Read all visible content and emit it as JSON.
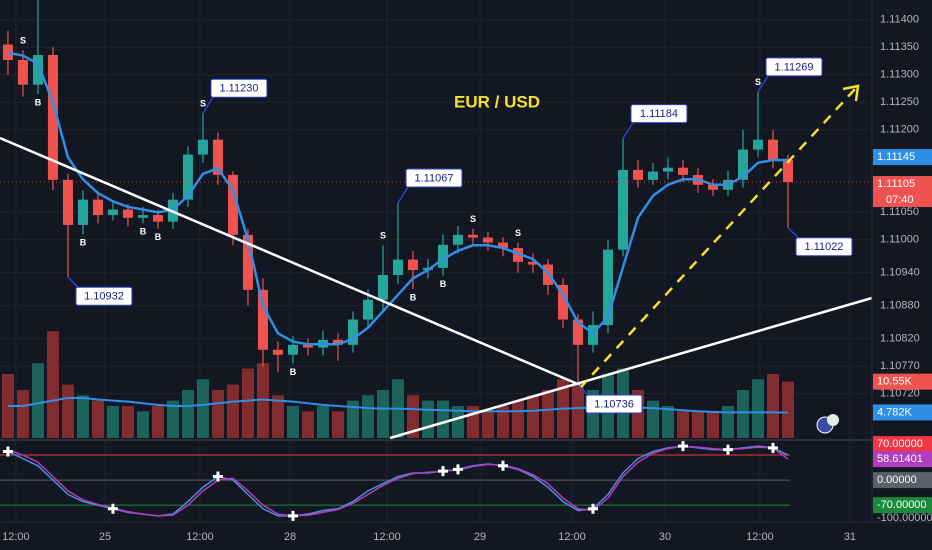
{
  "chart_data": {
    "type": "candlestick",
    "title": "EUR / USD",
    "xlim": [
      -0.53,
      57.6
    ],
    "xticks": [
      {
        "value": 0.53,
        "label": "12:00"
      },
      {
        "value": 6.47,
        "label": "25"
      },
      {
        "value": 12.8,
        "label": "12:00"
      },
      {
        "value": 18.8,
        "label": "28"
      },
      {
        "value": 25.27,
        "label": "12:00"
      },
      {
        "value": 31.47,
        "label": "29"
      },
      {
        "value": 37.6,
        "label": "12:00"
      },
      {
        "value": 43.8,
        "label": "30"
      },
      {
        "value": 50.13,
        "label": "12:00"
      },
      {
        "value": 56.13,
        "label": "31"
      }
    ],
    "ylim": [
      1.10636,
      1.11436
    ],
    "yticks": [
      {
        "value": 1.114,
        "label": "1.11400"
      },
      {
        "value": 1.1135,
        "label": "1.11350"
      },
      {
        "value": 1.113,
        "label": "1.11300"
      },
      {
        "value": 1.1125,
        "label": "1.11250"
      },
      {
        "value": 1.112,
        "label": "1.11200"
      },
      {
        "value": 1.1105,
        "label": "1.11050"
      },
      {
        "value": 1.11,
        "label": "1.11000"
      },
      {
        "value": 1.1094,
        "label": "1.10940"
      },
      {
        "value": 1.1088,
        "label": "1.10880"
      },
      {
        "value": 1.1082,
        "label": "1.10820"
      },
      {
        "value": 1.1077,
        "label": "1.10770"
      },
      {
        "value": 1.1072,
        "label": "1.10720"
      }
    ],
    "grid": true,
    "up_color": "#26a69a",
    "down_color": "#ef5350",
    "open": [
      1.11355,
      1.11327,
      1.11282,
      1.11336,
      1.11109,
      1.11027,
      1.11073,
      1.11045,
      1.11055,
      1.1104,
      1.11045,
      1.11033,
      1.11073,
      1.11155,
      1.11182,
      1.11118,
      1.11009,
      1.10909,
      1.108,
      1.10791,
      1.10809,
      1.10804,
      1.10818,
      1.10809,
      1.10855,
      1.10891,
      1.10936,
      1.10964,
      1.10945,
      1.10949,
      1.10991,
      1.11009,
      1.11004,
      1.10995,
      1.10985,
      1.1096,
      1.10955,
      1.10918,
      1.10855,
      1.10809,
      1.10845,
      1.10982,
      1.11127,
      1.11109,
      1.11124,
      1.11131,
      1.11118,
      1.111,
      1.11091,
      1.11109,
      1.11164,
      1.11182,
      1.11145
    ],
    "high": [
      1.1138,
      1.11345,
      1.11436,
      1.1135,
      1.1112,
      1.1109,
      1.11085,
      1.1107,
      1.11065,
      1.1106,
      1.11055,
      1.11085,
      1.1117,
      1.1123,
      1.11195,
      1.11125,
      1.1102,
      1.1093,
      1.10815,
      1.10825,
      1.1082,
      1.10835,
      1.1083,
      1.1087,
      1.1091,
      1.1099,
      1.11067,
      1.1098,
      1.10965,
      1.1101,
      1.11025,
      1.1102,
      1.11015,
      1.11005,
      1.10995,
      1.10975,
      1.10965,
      1.1093,
      1.10865,
      1.1087,
      1.11,
      1.11184,
      1.11145,
      1.1114,
      1.1115,
      1.11145,
      1.1113,
      1.1111,
      1.11125,
      1.112,
      1.11269,
      1.112,
      1.11155
    ],
    "low": [
      1.113,
      1.1126,
      1.11265,
      1.1109,
      1.10932,
      1.1101,
      1.1103,
      1.11035,
      1.11025,
      1.1103,
      1.1102,
      1.1102,
      1.1106,
      1.1114,
      1.111,
      1.1099,
      1.1088,
      1.1077,
      1.1076,
      1.10775,
      1.1079,
      1.1079,
      1.1078,
      1.10795,
      1.1084,
      1.1087,
      1.1092,
      1.1091,
      1.1093,
      1.10935,
      1.10975,
      1.1099,
      1.1098,
      1.1097,
      1.1094,
      1.1094,
      1.109,
      1.1084,
      1.10736,
      1.10795,
      1.1083,
      1.1097,
      1.11095,
      1.111,
      1.1111,
      1.11105,
      1.11085,
      1.1108,
      1.1108,
      1.11095,
      1.1115,
      1.1113,
      1.11022
    ],
    "close": [
      1.11327,
      1.11282,
      1.11336,
      1.11109,
      1.11027,
      1.11073,
      1.11045,
      1.11055,
      1.1104,
      1.11045,
      1.11033,
      1.11073,
      1.11155,
      1.11182,
      1.11118,
      1.11009,
      1.10909,
      1.108,
      1.10791,
      1.10809,
      1.10804,
      1.10818,
      1.10809,
      1.10855,
      1.10891,
      1.10936,
      1.10964,
      1.10945,
      1.10949,
      1.10991,
      1.11009,
      1.11004,
      1.10995,
      1.10985,
      1.1096,
      1.10955,
      1.10918,
      1.10855,
      1.10809,
      1.10845,
      1.10982,
      1.11127,
      1.11109,
      1.11124,
      1.11131,
      1.11118,
      1.111,
      1.11091,
      1.11109,
      1.11164,
      1.11182,
      1.11145,
      1.11105
    ],
    "last_price_label": "1.11105",
    "countdown": "07:40",
    "ma": {
      "color": "#2f8fe6",
      "last_label": "1.11145",
      "values": [
        1.1134,
        1.11335,
        1.1132,
        1.1125,
        1.1115,
        1.1111,
        1.11085,
        1.1107,
        1.1106,
        1.11055,
        1.1105,
        1.11055,
        1.1108,
        1.1112,
        1.1113,
        1.1109,
        1.11,
        1.1088,
        1.1083,
        1.10815,
        1.1081,
        1.1081,
        1.1081,
        1.1082,
        1.1084,
        1.1087,
        1.109,
        1.1093,
        1.10945,
        1.10965,
        1.1098,
        1.1099,
        1.1099,
        1.10985,
        1.10975,
        1.10965,
        1.1094,
        1.109,
        1.1085,
        1.1083,
        1.1086,
        1.1095,
        1.1104,
        1.1108,
        1.111,
        1.1111,
        1.1111,
        1.111,
        1.111,
        1.11115,
        1.1114,
        1.11145,
        1.11145
      ]
    },
    "annotations": [
      {
        "candle": 13,
        "value": 1.1123,
        "label": "1.11230"
      },
      {
        "candle": 4,
        "value": 1.10932,
        "label": "1.10932"
      },
      {
        "candle": 26,
        "value": 1.11067,
        "label": "1.11067"
      },
      {
        "candle": 41,
        "value": 1.11184,
        "label": "1.11184"
      },
      {
        "candle": 50,
        "value": 1.11269,
        "label": "1.11269"
      },
      {
        "candle": 52,
        "value": 1.11022,
        "label": "1.11022"
      },
      {
        "candle": 38,
        "value": 1.10736,
        "label": "1.10736"
      }
    ],
    "signals": [
      {
        "candle": 1,
        "label": "S"
      },
      {
        "candle": 13,
        "label": "S"
      },
      {
        "candle": 25,
        "label": "S"
      },
      {
        "candle": 31,
        "label": "S"
      },
      {
        "candle": 34,
        "label": "S"
      },
      {
        "candle": 50,
        "label": "S"
      },
      {
        "candle": 2,
        "label": "B"
      },
      {
        "candle": 5,
        "label": "B"
      },
      {
        "candle": 9,
        "label": "B"
      },
      {
        "candle": 10,
        "label": "B"
      },
      {
        "candle": 19,
        "label": "B"
      },
      {
        "candle": 27,
        "label": "B"
      },
      {
        "candle": 29,
        "label": "B"
      }
    ],
    "volume": {
      "ylim": [
        0,
        82
      ],
      "last_label": "10.55K",
      "ma_last_label": "4.782K",
      "ma_color": "#2f8fe6",
      "values": [
        12,
        9,
        14,
        20,
        10,
        8,
        7,
        6,
        6,
        5,
        6,
        7,
        9,
        11,
        9,
        10,
        13,
        14,
        8,
        6,
        5,
        6,
        5,
        7,
        8,
        9,
        11,
        8,
        7,
        7,
        6,
        6,
        5,
        6,
        7,
        8,
        9,
        11,
        10,
        9,
        12,
        13,
        9,
        7,
        6,
        5,
        5,
        5,
        6,
        9,
        11,
        12,
        10.55
      ],
      "ma_values": [
        6,
        6,
        6.5,
        7,
        7.5,
        7.5,
        7.2,
        7,
        6.8,
        6.5,
        6.2,
        6,
        6,
        6.2,
        6.5,
        6.8,
        7,
        7.2,
        7,
        6.8,
        6.5,
        6.2,
        6,
        5.8,
        5.6,
        5.5,
        5.5,
        5.4,
        5.3,
        5.2,
        5.1,
        5,
        5,
        5,
        5,
        5.1,
        5.3,
        5.5,
        5.6,
        5.7,
        5.8,
        5.8,
        5.7,
        5.6,
        5.4,
        5.2,
        5,
        4.9,
        4.8,
        4.8,
        4.8,
        4.8,
        4.782
      ]
    },
    "oscillator": {
      "ylim": [
        -117,
        112
      ],
      "yticks": [
        {
          "value": 70,
          "label": "70.00000"
        },
        {
          "value": 0,
          "label": "0.00000"
        },
        {
          "value": -70,
          "label": "-70.00000"
        },
        {
          "value": -100,
          "label": "-100.00000"
        }
      ],
      "tick_colors": [
        "#f23645",
        "#5d606b",
        "#1b8a3a",
        null
      ],
      "cross_candles": [
        0,
        7,
        14,
        19,
        29,
        30,
        33,
        39,
        45,
        48,
        51
      ],
      "series": [
        {
          "color": "#4a90d9",
          "values": [
            80,
            60,
            40,
            0,
            -40,
            -60,
            -70,
            -80,
            -90,
            -95,
            -100,
            -95,
            -60,
            -20,
            10,
            0,
            -40,
            -80,
            -100,
            -100,
            -95,
            -85,
            -80,
            -60,
            -30,
            -10,
            10,
            20,
            20,
            25,
            30,
            40,
            45,
            40,
            30,
            10,
            -20,
            -60,
            -85,
            -80,
            -40,
            20,
            60,
            80,
            90,
            95,
            90,
            85,
            85,
            90,
            95,
            90,
            70
          ]
        },
        {
          "color": "#b23cc0",
          "values": [
            85,
            70,
            50,
            10,
            -30,
            -55,
            -68,
            -78,
            -88,
            -95,
            -100,
            -98,
            -70,
            -30,
            0,
            5,
            -30,
            -70,
            -95,
            -100,
            -98,
            -90,
            -82,
            -65,
            -40,
            -15,
            5,
            18,
            22,
            25,
            28,
            38,
            44,
            42,
            32,
            15,
            -10,
            -50,
            -80,
            -85,
            -50,
            10,
            50,
            75,
            88,
            95,
            92,
            88,
            85,
            88,
            92,
            90,
            58.61401
          ]
        }
      ]
    }
  }
}
